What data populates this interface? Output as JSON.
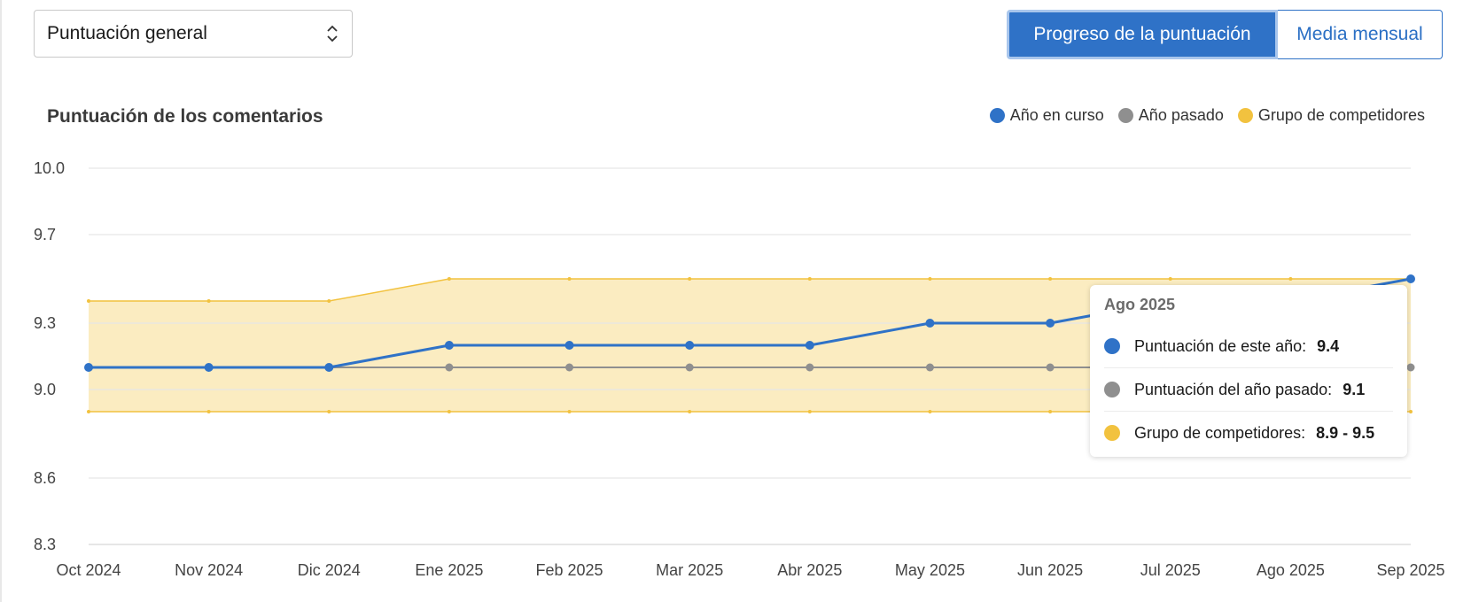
{
  "selector": {
    "value": "Puntuación general"
  },
  "view_toggle": {
    "active_label": "Progreso de la puntuación",
    "inactive_label": "Media mensual"
  },
  "colors": {
    "current": "#2f72c7",
    "last": "#8f8f8f",
    "competitors_fill": "#fbecc1",
    "competitors_line": "#f2c23f",
    "grid": "#e6e6e6"
  },
  "chart_data": {
    "type": "line",
    "title": "Puntuación de los comentarios",
    "legend": [
      {
        "label": "Año en curso",
        "color": "#2f72c7"
      },
      {
        "label": "Año pasado",
        "color": "#8f8f8f"
      },
      {
        "label": "Grupo de competidores",
        "color": "#f2c23f"
      }
    ],
    "legend_position": "top-right",
    "categories": [
      "Oct 2024",
      "Nov 2024",
      "Dic 2024",
      "Ene 2025",
      "Feb 2025",
      "Mar 2025",
      "Abr 2025",
      "May 2025",
      "Jun 2025",
      "Jul 2025",
      "Ago 2025",
      "Sep 2025"
    ],
    "y_ticks": [
      "10.0",
      "9.7",
      "9.3",
      "9.0",
      "8.6",
      "8.3"
    ],
    "ylim": [
      8.3,
      10.0
    ],
    "series": [
      {
        "name": "Año en curso",
        "values": [
          9.1,
          9.1,
          9.1,
          9.2,
          9.2,
          9.2,
          9.2,
          9.3,
          9.3,
          9.4,
          9.4,
          9.5
        ]
      },
      {
        "name": "Año pasado",
        "values": [
          9.1,
          9.1,
          9.1,
          9.1,
          9.1,
          9.1,
          9.1,
          9.1,
          9.1,
          9.1,
          9.1,
          9.1
        ]
      },
      {
        "name": "Grupo de competidores",
        "low": [
          8.9,
          8.9,
          8.9,
          8.9,
          8.9,
          8.9,
          8.9,
          8.9,
          8.9,
          8.9,
          8.9,
          8.9
        ],
        "high": [
          9.4,
          9.4,
          9.4,
          9.5,
          9.5,
          9.5,
          9.5,
          9.5,
          9.5,
          9.5,
          9.5,
          9.5
        ]
      }
    ],
    "grid": true,
    "tooltip": {
      "title": "Ago 2025",
      "rows": [
        {
          "label": "Puntuación de este año:",
          "value": "9.4"
        },
        {
          "label": "Puntuación del año pasado:",
          "value": "9.1"
        },
        {
          "label": "Grupo de competidores:",
          "value": "8.9 - 9.5"
        }
      ]
    }
  }
}
